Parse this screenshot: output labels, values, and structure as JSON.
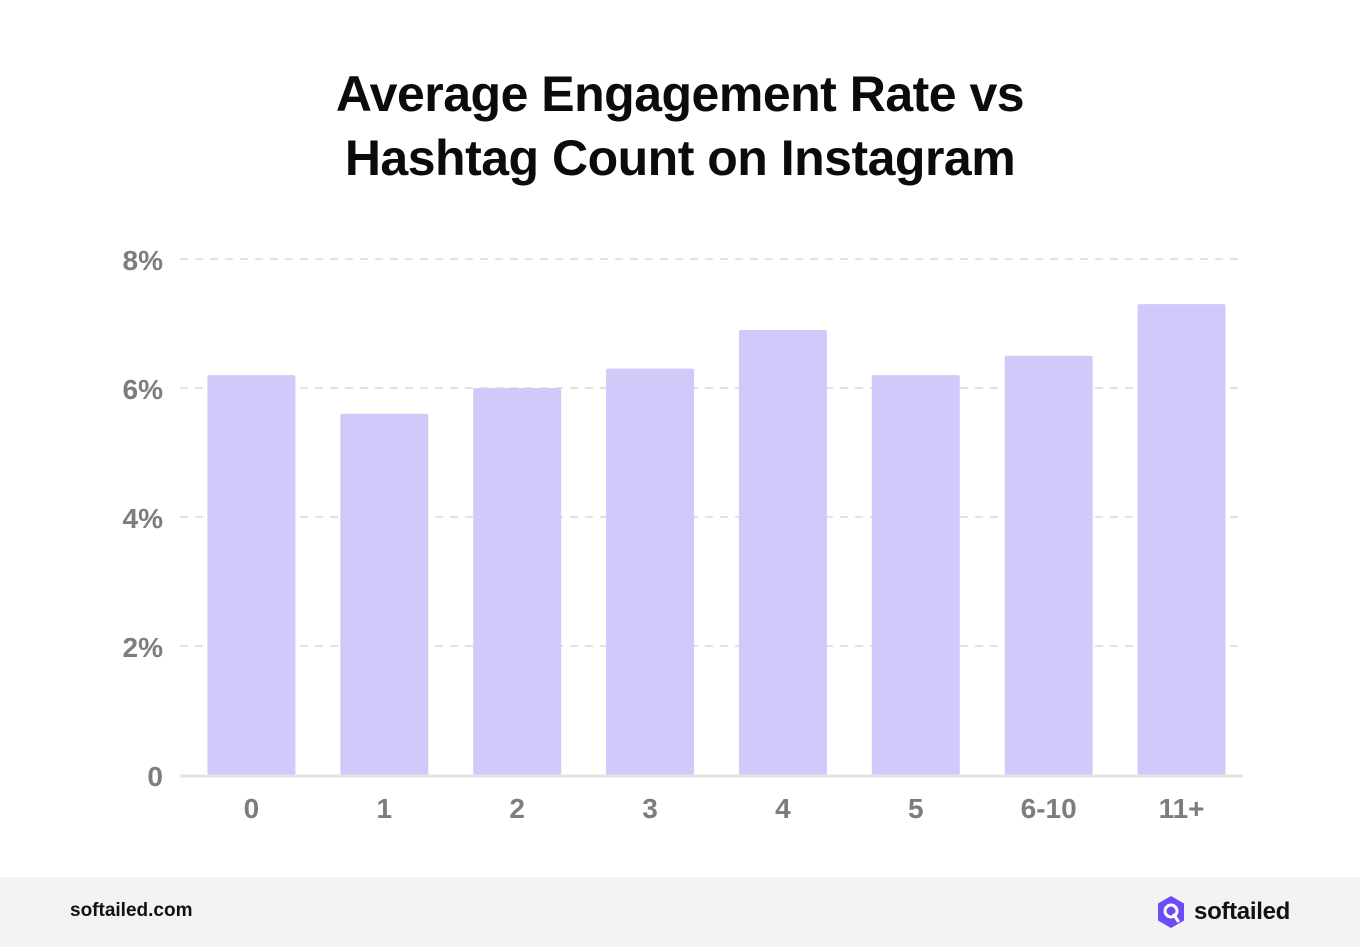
{
  "title_lines": [
    "Average Engagement Rate vs",
    "Hashtag Count on Instagram"
  ],
  "chart_data": {
    "type": "bar",
    "title": "Average Engagement Rate vs Hashtag Count on Instagram",
    "categories": [
      "0",
      "1",
      "2",
      "3",
      "4",
      "5",
      "6-10",
      "11+"
    ],
    "values": [
      6.2,
      5.6,
      6.0,
      6.3,
      6.9,
      6.2,
      6.5,
      7.3
    ],
    "ylim": [
      0,
      8
    ],
    "yticks": [
      0,
      2,
      4,
      6,
      8
    ],
    "ytick_labels": [
      "0",
      "2%",
      "4%",
      "6%",
      "8%"
    ],
    "xlabel": "",
    "ylabel": "",
    "grid": true,
    "bar_color": "#d2c9fb"
  },
  "footer": {
    "url": "softailed.com",
    "brand": "softailed",
    "logo_icon": "softailed-logo-icon",
    "logo_color": "#6b4cf6"
  }
}
